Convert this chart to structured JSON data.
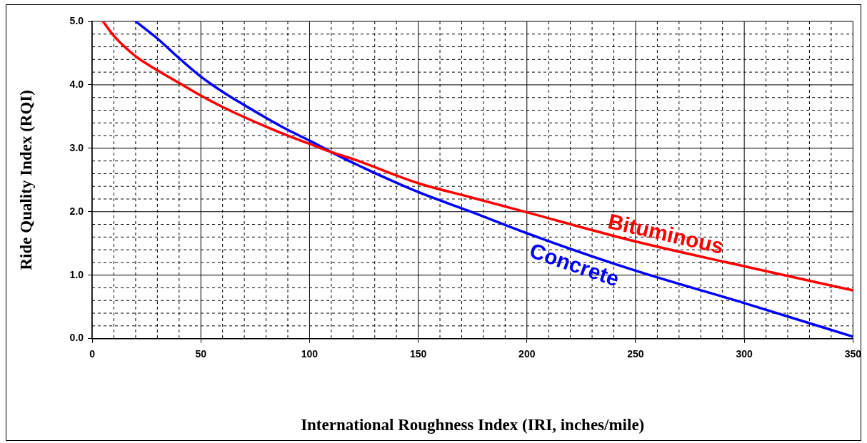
{
  "chart_data": {
    "type": "line",
    "xlabel": "International Roughness Index (IRI, inches/mile)",
    "ylabel": "Ride Quality Index (RQI)",
    "xlim": [
      0,
      350
    ],
    "ylim": [
      0,
      5
    ],
    "xticks": [
      0,
      {
        "value": 10,
        "label": null
      },
      {
        "value": 20,
        "label": null
      },
      {
        "value": 30,
        "label": null
      },
      {
        "value": 40,
        "label": null
      },
      50,
      {
        "value": 60,
        "label": null
      },
      {
        "value": 70,
        "label": null
      },
      {
        "value": 80,
        "label": null
      },
      {
        "value": 90,
        "label": null
      },
      100,
      {
        "value": 110,
        "label": null
      },
      {
        "value": 120,
        "label": null
      },
      {
        "value": 130,
        "label": null
      },
      {
        "value": 140,
        "label": null
      },
      150,
      {
        "value": 160,
        "label": null
      },
      {
        "value": 170,
        "label": null
      },
      {
        "value": 180,
        "label": null
      },
      {
        "value": 190,
        "label": null
      },
      200,
      {
        "value": 210,
        "label": null
      },
      {
        "value": 220,
        "label": null
      },
      {
        "value": 230,
        "label": null
      },
      {
        "value": 240,
        "label": null
      },
      250,
      {
        "value": 260,
        "label": null
      },
      {
        "value": 270,
        "label": null
      },
      {
        "value": 280,
        "label": null
      },
      {
        "value": 290,
        "label": null
      },
      300,
      {
        "value": 310,
        "label": null
      },
      {
        "value": 320,
        "label": null
      },
      {
        "value": 330,
        "label": null
      },
      {
        "value": 340,
        "label": null
      },
      350
    ],
    "yticks": [
      {
        "value": 0,
        "label": "0.0"
      },
      {
        "value": 0.2,
        "label": null
      },
      {
        "value": 0.4,
        "label": null
      },
      {
        "value": 0.6,
        "label": null
      },
      {
        "value": 0.8,
        "label": null
      },
      {
        "value": 1,
        "label": "1.0"
      },
      {
        "value": 1.2,
        "label": null
      },
      {
        "value": 1.4,
        "label": null
      },
      {
        "value": 1.6,
        "label": null
      },
      {
        "value": 1.8,
        "label": null
      },
      {
        "value": 2,
        "label": "2.0"
      },
      {
        "value": 2.2,
        "label": null
      },
      {
        "value": 2.4,
        "label": null
      },
      {
        "value": 2.6,
        "label": null
      },
      {
        "value": 2.8,
        "label": null
      },
      {
        "value": 3,
        "label": "3.0"
      },
      {
        "value": 3.2,
        "label": null
      },
      {
        "value": 3.4,
        "label": null
      },
      {
        "value": 3.6,
        "label": null
      },
      {
        "value": 3.8,
        "label": null
      },
      {
        "value": 4,
        "label": "4.0"
      },
      {
        "value": 4.2,
        "label": null
      },
      {
        "value": 4.4,
        "label": null
      },
      {
        "value": 4.6,
        "label": null
      },
      {
        "value": 4.8,
        "label": null
      },
      {
        "value": 5,
        "label": "5.0"
      }
    ],
    "grid": true,
    "legend": false,
    "marker": "none",
    "line_style": "solid",
    "series": [
      {
        "name": "Bituminous",
        "color": "#ff0000",
        "x": [
          5,
          10,
          20,
          30,
          40,
          50,
          60,
          70,
          80,
          90,
          100,
          110,
          120,
          150,
          175,
          200,
          250,
          300,
          350
        ],
        "values": [
          5.0,
          4.77,
          4.45,
          4.23,
          4.03,
          3.83,
          3.65,
          3.49,
          3.34,
          3.2,
          3.07,
          2.94,
          2.83,
          2.45,
          2.22,
          1.99,
          1.53,
          1.14,
          0.76
        ]
      },
      {
        "name": "Concrete",
        "color": "#0000ff",
        "x": [
          20,
          30,
          40,
          50,
          60,
          70,
          80,
          90,
          100,
          110,
          120,
          150,
          175,
          200,
          250,
          300,
          350
        ],
        "values": [
          5.0,
          4.73,
          4.42,
          4.13,
          3.89,
          3.68,
          3.48,
          3.29,
          3.12,
          2.94,
          2.77,
          2.31,
          1.99,
          1.66,
          1.07,
          0.56,
          0.03
        ]
      }
    ]
  }
}
